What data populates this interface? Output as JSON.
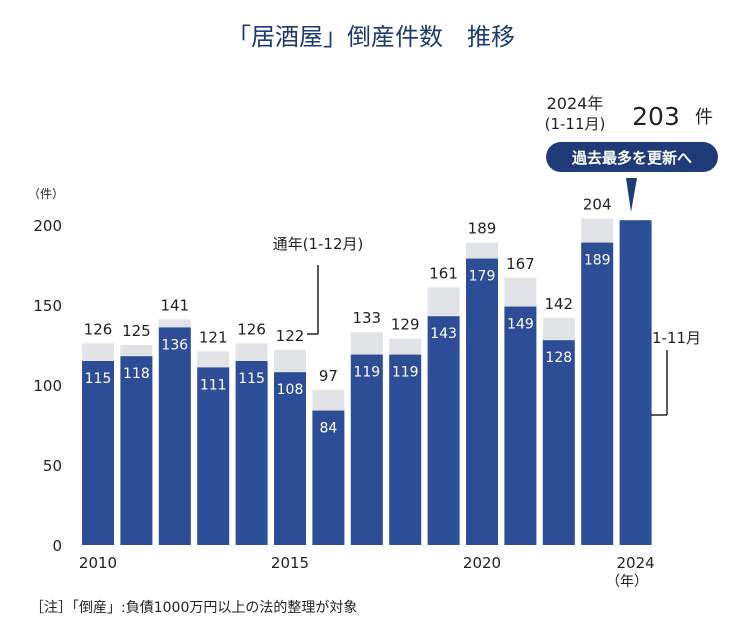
{
  "chart_data": {
    "type": "bar",
    "title": "「居酒屋」倒産件数　推移",
    "ylabel": "（件）",
    "xlabel": "（年）",
    "ylim": [
      0,
      200
    ],
    "yticks": [
      0,
      50,
      100,
      150,
      200
    ],
    "categories": [
      "2010",
      "2011",
      "2012",
      "2013",
      "2014",
      "2015",
      "2016",
      "2017",
      "2018",
      "2019",
      "2020",
      "2021",
      "2022",
      "2023",
      "2024"
    ],
    "xtick_labels": [
      "2010",
      "2015",
      "2020",
      "2024"
    ],
    "series": [
      {
        "name": "通年(1-12月)",
        "values": [
          126,
          125,
          141,
          121,
          126,
          122,
          97,
          133,
          129,
          161,
          189,
          167,
          142,
          204,
          null
        ],
        "color": "#e1e3e6"
      },
      {
        "name": "1-11月",
        "values": [
          115,
          118,
          136,
          111,
          115,
          108,
          84,
          119,
          119,
          143,
          179,
          149,
          128,
          189,
          203
        ],
        "color": "#2d4e96"
      }
    ],
    "legend_annual": "通年(1-12月)",
    "legend_partial": "1-11月",
    "highlight": {
      "year_line1": "2024年",
      "year_line2": "(1-11月)",
      "value": "203",
      "unit": "件",
      "badge": "過去最多を更新へ"
    },
    "note": "［注］「倒産」:負債1000万円以上の法的整理が対象"
  },
  "colors": {
    "bar_annual": "#e1e3e6",
    "bar_partial": "#2d4e96",
    "badge_bg": "#1f3b78",
    "title": "#1e3a6e",
    "text": "#222222"
  }
}
